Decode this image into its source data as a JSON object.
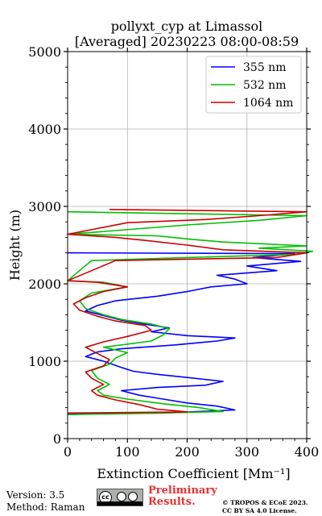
{
  "chart_data": {
    "type": "line",
    "title_line1": "pollyxt_cyp at Limassol",
    "title_line2": "[Averaged] 20230223 08:00-08:59",
    "xlabel": "Extinction Coefficient [Mm⁻¹]",
    "ylabel": "Height (m)",
    "xlim": [
      0,
      400
    ],
    "ylim": [
      0,
      5000
    ],
    "xticks": [
      "0",
      "100",
      "200",
      "300",
      "400"
    ],
    "yticks": [
      "0",
      "1000",
      "2000",
      "3000",
      "4000",
      "5000"
    ],
    "grid": true,
    "legend_position": "top-right",
    "series": [
      {
        "name": "355 nm",
        "color": "#0000ff",
        "points": [
          [
            0,
            320
          ],
          [
            160,
            330
          ],
          [
            280,
            370
          ],
          [
            250,
            420
          ],
          [
            200,
            460
          ],
          [
            160,
            510
          ],
          [
            120,
            560
          ],
          [
            90,
            620
          ],
          [
            150,
            660
          ],
          [
            230,
            690
          ],
          [
            260,
            740
          ],
          [
            200,
            790
          ],
          [
            150,
            830
          ],
          [
            110,
            870
          ],
          [
            90,
            920
          ],
          [
            60,
            1000
          ],
          [
            30,
            1060
          ],
          [
            50,
            1120
          ],
          [
            90,
            1160
          ],
          [
            180,
            1210
          ],
          [
            250,
            1260
          ],
          [
            280,
            1300
          ],
          [
            200,
            1330
          ],
          [
            140,
            1380
          ],
          [
            170,
            1430
          ],
          [
            120,
            1490
          ],
          [
            90,
            1530
          ],
          [
            60,
            1590
          ],
          [
            30,
            1650
          ],
          [
            50,
            1720
          ],
          [
            80,
            1780
          ],
          [
            150,
            1840
          ],
          [
            200,
            1900
          ],
          [
            240,
            1960
          ],
          [
            300,
            2000
          ],
          [
            280,
            2060
          ],
          [
            250,
            2110
          ],
          [
            350,
            2170
          ],
          [
            300,
            2230
          ],
          [
            390,
            2290
          ],
          [
            310,
            2340
          ],
          [
            380,
            2390
          ],
          [
            0,
            2400
          ]
        ]
      },
      {
        "name": "532 nm",
        "color": "#00c000",
        "points": [
          [
            0,
            310
          ],
          [
            120,
            325
          ],
          [
            260,
            350
          ],
          [
            220,
            400
          ],
          [
            160,
            450
          ],
          [
            100,
            510
          ],
          [
            60,
            560
          ],
          [
            50,
            620
          ],
          [
            70,
            700
          ],
          [
            50,
            780
          ],
          [
            40,
            880
          ],
          [
            70,
            960
          ],
          [
            80,
            1040
          ],
          [
            100,
            1110
          ],
          [
            60,
            1180
          ],
          [
            140,
            1260
          ],
          [
            160,
            1340
          ],
          [
            170,
            1420
          ],
          [
            140,
            1480
          ],
          [
            90,
            1540
          ],
          [
            60,
            1600
          ],
          [
            30,
            1680
          ],
          [
            20,
            1780
          ],
          [
            40,
            1880
          ],
          [
            100,
            1960
          ],
          [
            60,
            2020
          ],
          [
            0,
            2040
          ],
          [
            40,
            2300
          ],
          [
            200,
            2340
          ],
          [
            380,
            2380
          ],
          [
            410,
            2420
          ],
          [
            320,
            2460
          ],
          [
            400,
            2490
          ],
          [
            260,
            2540
          ],
          [
            200,
            2580
          ],
          [
            150,
            2620
          ],
          [
            0,
            2640
          ],
          [
            200,
            2760
          ],
          [
            320,
            2820
          ],
          [
            400,
            2880
          ],
          [
            0,
            2930
          ]
        ]
      },
      {
        "name": "1064 nm",
        "color": "#cc0000",
        "points": [
          [
            0,
            330
          ],
          [
            200,
            345
          ],
          [
            150,
            380
          ],
          [
            120,
            440
          ],
          [
            80,
            500
          ],
          [
            50,
            560
          ],
          [
            40,
            620
          ],
          [
            60,
            700
          ],
          [
            40,
            780
          ],
          [
            30,
            860
          ],
          [
            60,
            940
          ],
          [
            70,
            1020
          ],
          [
            50,
            1100
          ],
          [
            30,
            1180
          ],
          [
            60,
            1250
          ],
          [
            100,
            1320
          ],
          [
            140,
            1400
          ],
          [
            130,
            1460
          ],
          [
            80,
            1520
          ],
          [
            50,
            1580
          ],
          [
            20,
            1660
          ],
          [
            10,
            1740
          ],
          [
            30,
            1820
          ],
          [
            60,
            1900
          ],
          [
            100,
            1960
          ],
          [
            50,
            2020
          ],
          [
            0,
            2040
          ],
          [
            80,
            2300
          ],
          [
            350,
            2340
          ],
          [
            400,
            2400
          ],
          [
            260,
            2440
          ],
          [
            200,
            2500
          ],
          [
            130,
            2560
          ],
          [
            80,
            2600
          ],
          [
            0,
            2640
          ],
          [
            100,
            2790
          ],
          [
            230,
            2830
          ],
          [
            320,
            2880
          ],
          [
            400,
            2930
          ],
          [
            70,
            2960
          ]
        ]
      }
    ]
  },
  "footer": {
    "version": "Version: 3.5",
    "method": "Method: Raman",
    "license_badge": "cc by sa",
    "preliminary_line1": "Preliminary",
    "preliminary_line2": "Results.",
    "copyright_line1": "© TROPOS & ECoE 2023.",
    "copyright_line2": "CC BY SA 4.0 License."
  }
}
